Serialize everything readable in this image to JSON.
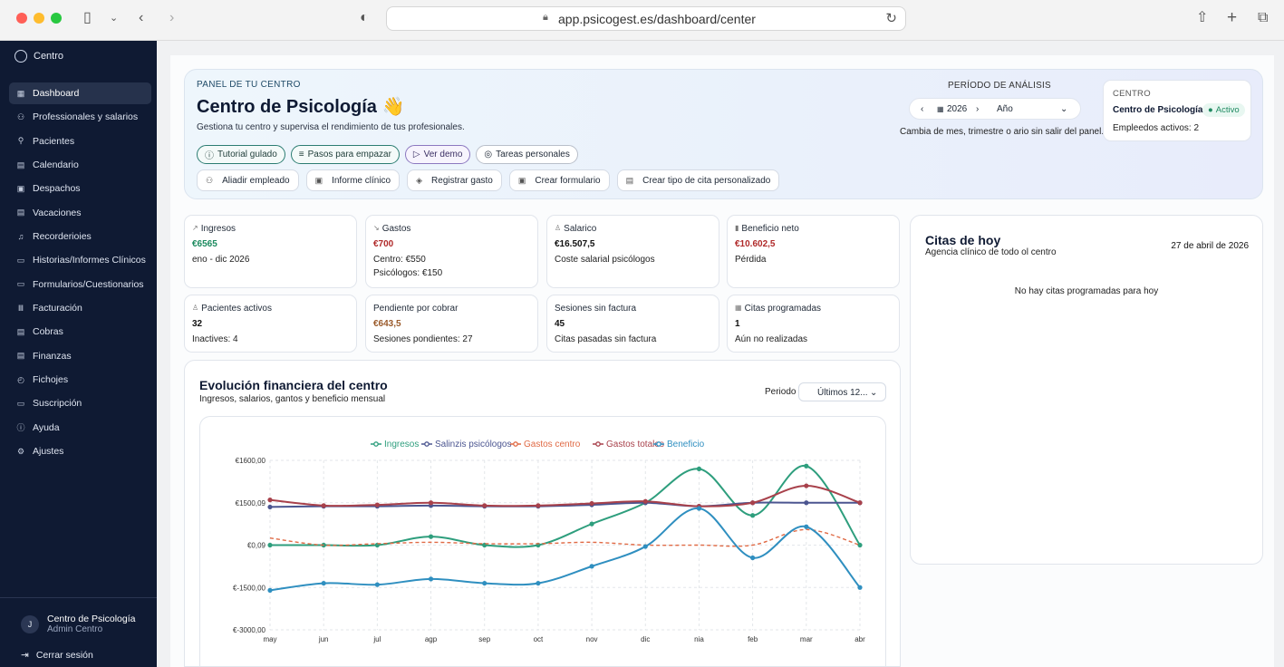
{
  "browser": {
    "url": "app.psicogest.es/dashboard/center"
  },
  "sidebar": {
    "brand": "Centro",
    "items": [
      {
        "label": "Dashboard",
        "icon": "grid-icon",
        "glyph": "▦",
        "active": true
      },
      {
        "label": "Professionales y salarios",
        "icon": "users-icon",
        "glyph": "⚇"
      },
      {
        "label": "Pacientes",
        "icon": "user-plus-icon",
        "glyph": "⚲"
      },
      {
        "label": "Calendario",
        "icon": "calendar-icon",
        "glyph": "▤"
      },
      {
        "label": "Despachos",
        "icon": "building-icon",
        "glyph": "▣"
      },
      {
        "label": "Vacaciones",
        "icon": "calendar-icon",
        "glyph": "▤"
      },
      {
        "label": "Recorderioies",
        "icon": "bell-icon",
        "glyph": "♫"
      },
      {
        "label": "Historias/Informes Clínicos",
        "icon": "document-icon",
        "glyph": "▭"
      },
      {
        "label": "Formularios/Cuestionarios",
        "icon": "form-icon",
        "glyph": "▭"
      },
      {
        "label": "Facturación",
        "icon": "receipt-icon",
        "glyph": "Ⅲ"
      },
      {
        "label": "Cobras",
        "icon": "cash-icon",
        "glyph": "▤"
      },
      {
        "label": "Finanzas",
        "icon": "wallet-icon",
        "glyph": "▤"
      },
      {
        "label": "Fichojes",
        "icon": "clock-icon",
        "glyph": "◴"
      },
      {
        "label": "Suscripción",
        "icon": "card-icon",
        "glyph": "▭"
      },
      {
        "label": "Ayuda",
        "icon": "help-icon",
        "glyph": "ⓘ"
      },
      {
        "label": "Ajustes",
        "icon": "gear-icon",
        "glyph": "⚙"
      }
    ],
    "user": {
      "initial": "J",
      "name": "Centro de Psicología",
      "role": "Admin Centro"
    },
    "logout": "Cerrar sesión"
  },
  "hero": {
    "kicker": "PANEL DE TU CENTRO",
    "title": "Centro de Psicología 👋",
    "subtitle": "Gestiona tu centro y supervisa el rendimiento de tus profesionales.",
    "chips": [
      "Tutorial gulado",
      "Pasos para empazar",
      "Ver demo",
      "Tareas personales"
    ],
    "actions": [
      "Aliadir empleado",
      "Informe clínico",
      "Registrar gasto",
      "Crear formulario",
      "Crear tipo de cita personalizado"
    ],
    "period": {
      "label": "PERÍODO DE ANÁLISIS",
      "year": "2026",
      "mode": "Año",
      "hint": "Cambia de mes, trimestre o ario sin salir del panel."
    },
    "center": {
      "label": "CENTRO",
      "name": "Centro de Psicología",
      "status": "Activo",
      "employees": "Empleedos activos: 2"
    }
  },
  "stats": [
    {
      "title": "Ingresos",
      "icon": "trend-icon",
      "value": "€6565",
      "color": "green",
      "lines": [
        "eno - dic 2026"
      ]
    },
    {
      "title": "Gastos",
      "icon": "trend-down-icon",
      "value": "€700",
      "color": "red",
      "lines": [
        "Centro: €550",
        "Psicólogos: €150"
      ]
    },
    {
      "title": "Salarico",
      "icon": "person-icon",
      "value": "€16.507,5",
      "color": "black",
      "lines": [
        "Coste salarial psicólogos"
      ]
    },
    {
      "title": "Beneficio neto",
      "icon": "wallet-icon",
      "value": "€10.602,5",
      "color": "red",
      "lines": [
        "Pérdida"
      ]
    },
    {
      "title": "Pacientes activos",
      "icon": "person-icon",
      "value": "32",
      "color": "black",
      "lines": [
        "Inactives: 4"
      ]
    },
    {
      "title": "Pendiente por cobrar",
      "icon": "",
      "value": "€643,5",
      "color": "brown",
      "lines": [
        "Sesiones pondientes: 27"
      ]
    },
    {
      "title": "Sesiones sin factura",
      "icon": "",
      "value": "45",
      "color": "black",
      "lines": [
        "Citas pasadas sin factura"
      ]
    },
    {
      "title": "Citas programadas",
      "icon": "calendar-icon",
      "value": "1",
      "color": "black",
      "lines": [
        "Aún no realizadas"
      ]
    }
  ],
  "citas": {
    "title": "Citas de hoy",
    "subtitle": "Agencia clínico de todo ol centro",
    "date": "27 de abril de 2026",
    "empty": "No hay citas programadas para hoy"
  },
  "chart_panel": {
    "title": "Evolución financiera del centro",
    "subtitle": "Ingresos, salarios, gantos y beneficio mensual",
    "period_label": "Periodo",
    "period_value": "Últimos 12..."
  },
  "chart_data": {
    "type": "line",
    "categories": [
      "may",
      "jun",
      "jul",
      "agp",
      "sep",
      "oct",
      "nov",
      "dic",
      "nia",
      "feb",
      "mar",
      "abr"
    ],
    "y_ticks": [
      "€1600,00",
      "€1500,09",
      "€0,09",
      "€-1500,00",
      "€-3000,00"
    ],
    "ylim": [
      -3000,
      3000
    ],
    "grid": true,
    "legend_position": "top",
    "series": [
      {
        "name": "Ingresos",
        "color": "#2e9e7d",
        "dashed": false,
        "values": [
          0,
          0,
          0,
          300,
          0,
          0,
          750,
          1500,
          2700,
          1050,
          2800,
          0
        ]
      },
      {
        "name": "Salinzis psicólogos",
        "color": "#4b5590",
        "dashed": false,
        "values": [
          1350,
          1375,
          1375,
          1400,
          1375,
          1375,
          1425,
          1500,
          1375,
          1500,
          1500,
          1500
        ]
      },
      {
        "name": "Gastos centro",
        "color": "#e06a45",
        "dashed": true,
        "values": [
          250,
          0,
          50,
          100,
          50,
          50,
          100,
          0,
          0,
          0,
          550,
          0
        ]
      },
      {
        "name": "Gastos totales",
        "color": "#a8414b",
        "dashed": false,
        "values": [
          1600,
          1400,
          1425,
          1500,
          1400,
          1400,
          1475,
          1550,
          1375,
          1500,
          2100,
          1500
        ]
      },
      {
        "name": "Beneficio",
        "color": "#2f8fc0",
        "dashed": false,
        "values": [
          -1600,
          -1350,
          -1400,
          -1200,
          -1350,
          -1350,
          -750,
          -50,
          1300,
          -450,
          650,
          -1500
        ]
      }
    ]
  }
}
